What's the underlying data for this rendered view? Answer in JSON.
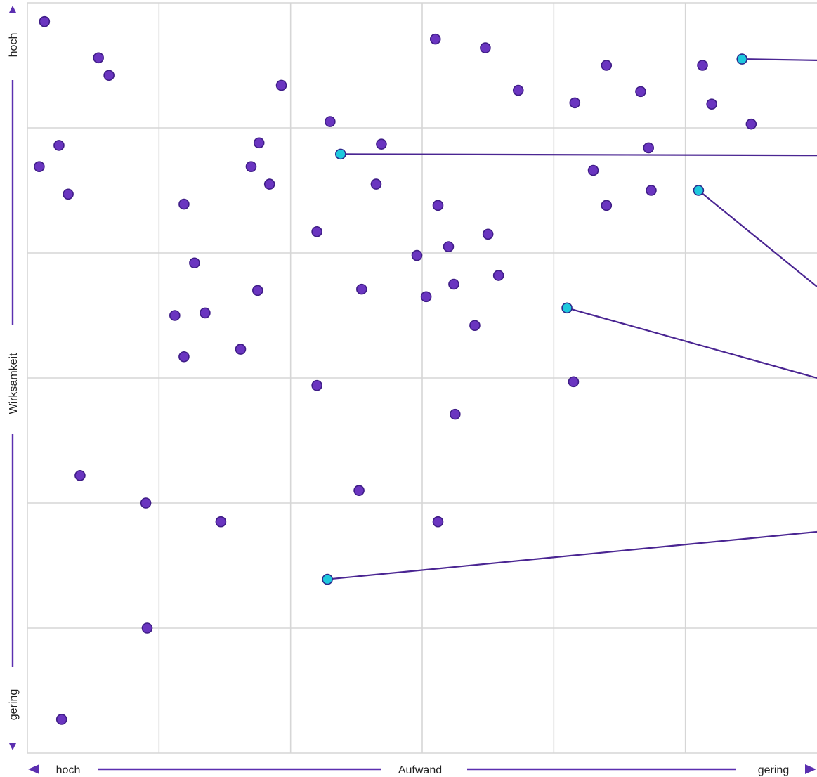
{
  "colors": {
    "point_fill": "#6a35c0",
    "point_stroke": "#3f1d87",
    "highlight_fill": "#1ec8dd",
    "highlight_stroke": "#2b2a8c",
    "line_color": "#4a2592",
    "axis_color": "#5b2fb0",
    "grid_color": "#d6d6d6"
  },
  "axes": {
    "x_label": "Aufwand",
    "x_left": "hoch",
    "x_right": "gering",
    "y_label": "Wirksamkeit",
    "y_top": "hoch",
    "y_bottom": "gering"
  },
  "chart_data": {
    "type": "scatter",
    "xlim": [
      0,
      6
    ],
    "ylim": [
      0,
      6
    ],
    "grid": true,
    "legend": "none",
    "x_ticks": [
      1,
      2,
      3,
      4,
      5
    ],
    "y_ticks": [
      1,
      2,
      3,
      4,
      5
    ],
    "points": [
      {
        "x": 0.13,
        "y": 5.85
      },
      {
        "x": 0.54,
        "y": 5.56
      },
      {
        "x": 0.62,
        "y": 5.42
      },
      {
        "x": 1.93,
        "y": 5.34
      },
      {
        "x": 2.3,
        "y": 5.05
      },
      {
        "x": 3.1,
        "y": 5.71
      },
      {
        "x": 3.48,
        "y": 5.64
      },
      {
        "x": 3.73,
        "y": 5.3
      },
      {
        "x": 4.16,
        "y": 5.2
      },
      {
        "x": 4.4,
        "y": 5.5
      },
      {
        "x": 4.66,
        "y": 5.29
      },
      {
        "x": 5.13,
        "y": 5.5
      },
      {
        "x": 5.2,
        "y": 5.19
      },
      {
        "x": 5.5,
        "y": 5.03
      },
      {
        "x": 0.24,
        "y": 4.86
      },
      {
        "x": 0.09,
        "y": 4.69
      },
      {
        "x": 0.31,
        "y": 4.47
      },
      {
        "x": 1.76,
        "y": 4.88
      },
      {
        "x": 1.7,
        "y": 4.69
      },
      {
        "x": 1.84,
        "y": 4.55
      },
      {
        "x": 2.69,
        "y": 4.87
      },
      {
        "x": 2.65,
        "y": 4.55
      },
      {
        "x": 1.19,
        "y": 4.39
      },
      {
        "x": 2.2,
        "y": 4.17
      },
      {
        "x": 3.12,
        "y": 4.38
      },
      {
        "x": 3.2,
        "y": 4.05
      },
      {
        "x": 3.5,
        "y": 4.15
      },
      {
        "x": 2.96,
        "y": 3.98
      },
      {
        "x": 4.3,
        "y": 4.66
      },
      {
        "x": 4.4,
        "y": 4.38
      },
      {
        "x": 4.72,
        "y": 4.84
      },
      {
        "x": 4.74,
        "y": 4.5
      },
      {
        "x": 1.27,
        "y": 3.92
      },
      {
        "x": 1.75,
        "y": 3.7
      },
      {
        "x": 1.35,
        "y": 3.52
      },
      {
        "x": 1.12,
        "y": 3.5
      },
      {
        "x": 1.62,
        "y": 3.23
      },
      {
        "x": 1.19,
        "y": 3.17
      },
      {
        "x": 2.54,
        "y": 3.71
      },
      {
        "x": 3.03,
        "y": 3.65
      },
      {
        "x": 3.24,
        "y": 3.75
      },
      {
        "x": 3.58,
        "y": 3.82
      },
      {
        "x": 3.4,
        "y": 3.42
      },
      {
        "x": 2.2,
        "y": 2.94
      },
      {
        "x": 3.25,
        "y": 2.71
      },
      {
        "x": 4.15,
        "y": 2.97
      },
      {
        "x": 0.4,
        "y": 2.22
      },
      {
        "x": 0.9,
        "y": 2.0
      },
      {
        "x": 1.47,
        "y": 1.85
      },
      {
        "x": 2.52,
        "y": 2.1
      },
      {
        "x": 3.12,
        "y": 1.85
      },
      {
        "x": 0.91,
        "y": 1.0
      },
      {
        "x": 0.26,
        "y": 0.27
      }
    ],
    "highlighted": [
      {
        "x": 5.43,
        "y": 5.55,
        "to_y": 5.54
      },
      {
        "x": 2.38,
        "y": 4.79,
        "to_y": 4.78
      },
      {
        "x": 5.1,
        "y": 4.5,
        "to_y": 3.73
      },
      {
        "x": 4.1,
        "y": 3.56,
        "to_y": 3.0
      },
      {
        "x": 2.28,
        "y": 1.39,
        "to_y": 1.77
      }
    ]
  }
}
